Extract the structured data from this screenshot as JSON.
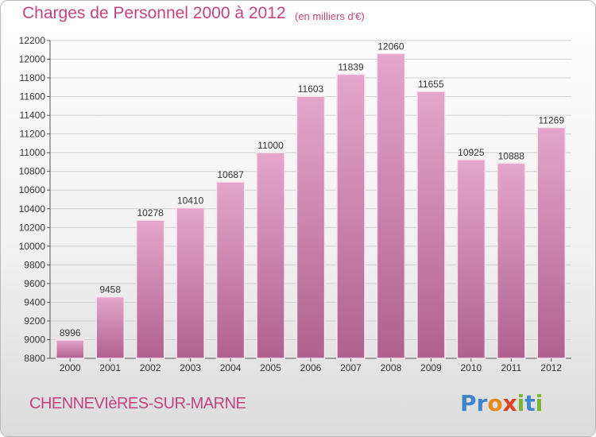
{
  "header": {
    "title": "Charges de Personnel 2000 à 2012",
    "subtitle": "(en milliers d'€)"
  },
  "footer": {
    "commune": "CHENNEVIèRES-SUR-MARNE",
    "brand": "Proxiti"
  },
  "colors": {
    "title": "#c2457f",
    "bar_top": "#e4a6cb",
    "bar_bottom": "#b0618e",
    "grid": "#d0d0d0"
  },
  "chart_data": {
    "type": "bar",
    "title": "Charges de Personnel 2000 à 2012",
    "subtitle": "(en milliers d'€)",
    "categories": [
      "2000",
      "2001",
      "2002",
      "2003",
      "2004",
      "2005",
      "2006",
      "2007",
      "2008",
      "2009",
      "2010",
      "2011",
      "2012"
    ],
    "values": [
      8996,
      9458,
      10278,
      10410,
      10687,
      11000,
      11603,
      11839,
      12060,
      11655,
      10925,
      10888,
      11269
    ],
    "ylim": [
      8800,
      12200
    ],
    "yticks": [
      8800,
      9000,
      9200,
      9400,
      9600,
      9800,
      10000,
      10200,
      10400,
      10600,
      10800,
      11000,
      11200,
      11400,
      11600,
      11800,
      12000,
      12200
    ],
    "xlabel": "",
    "ylabel": "",
    "grid": true,
    "data_labels": true
  }
}
